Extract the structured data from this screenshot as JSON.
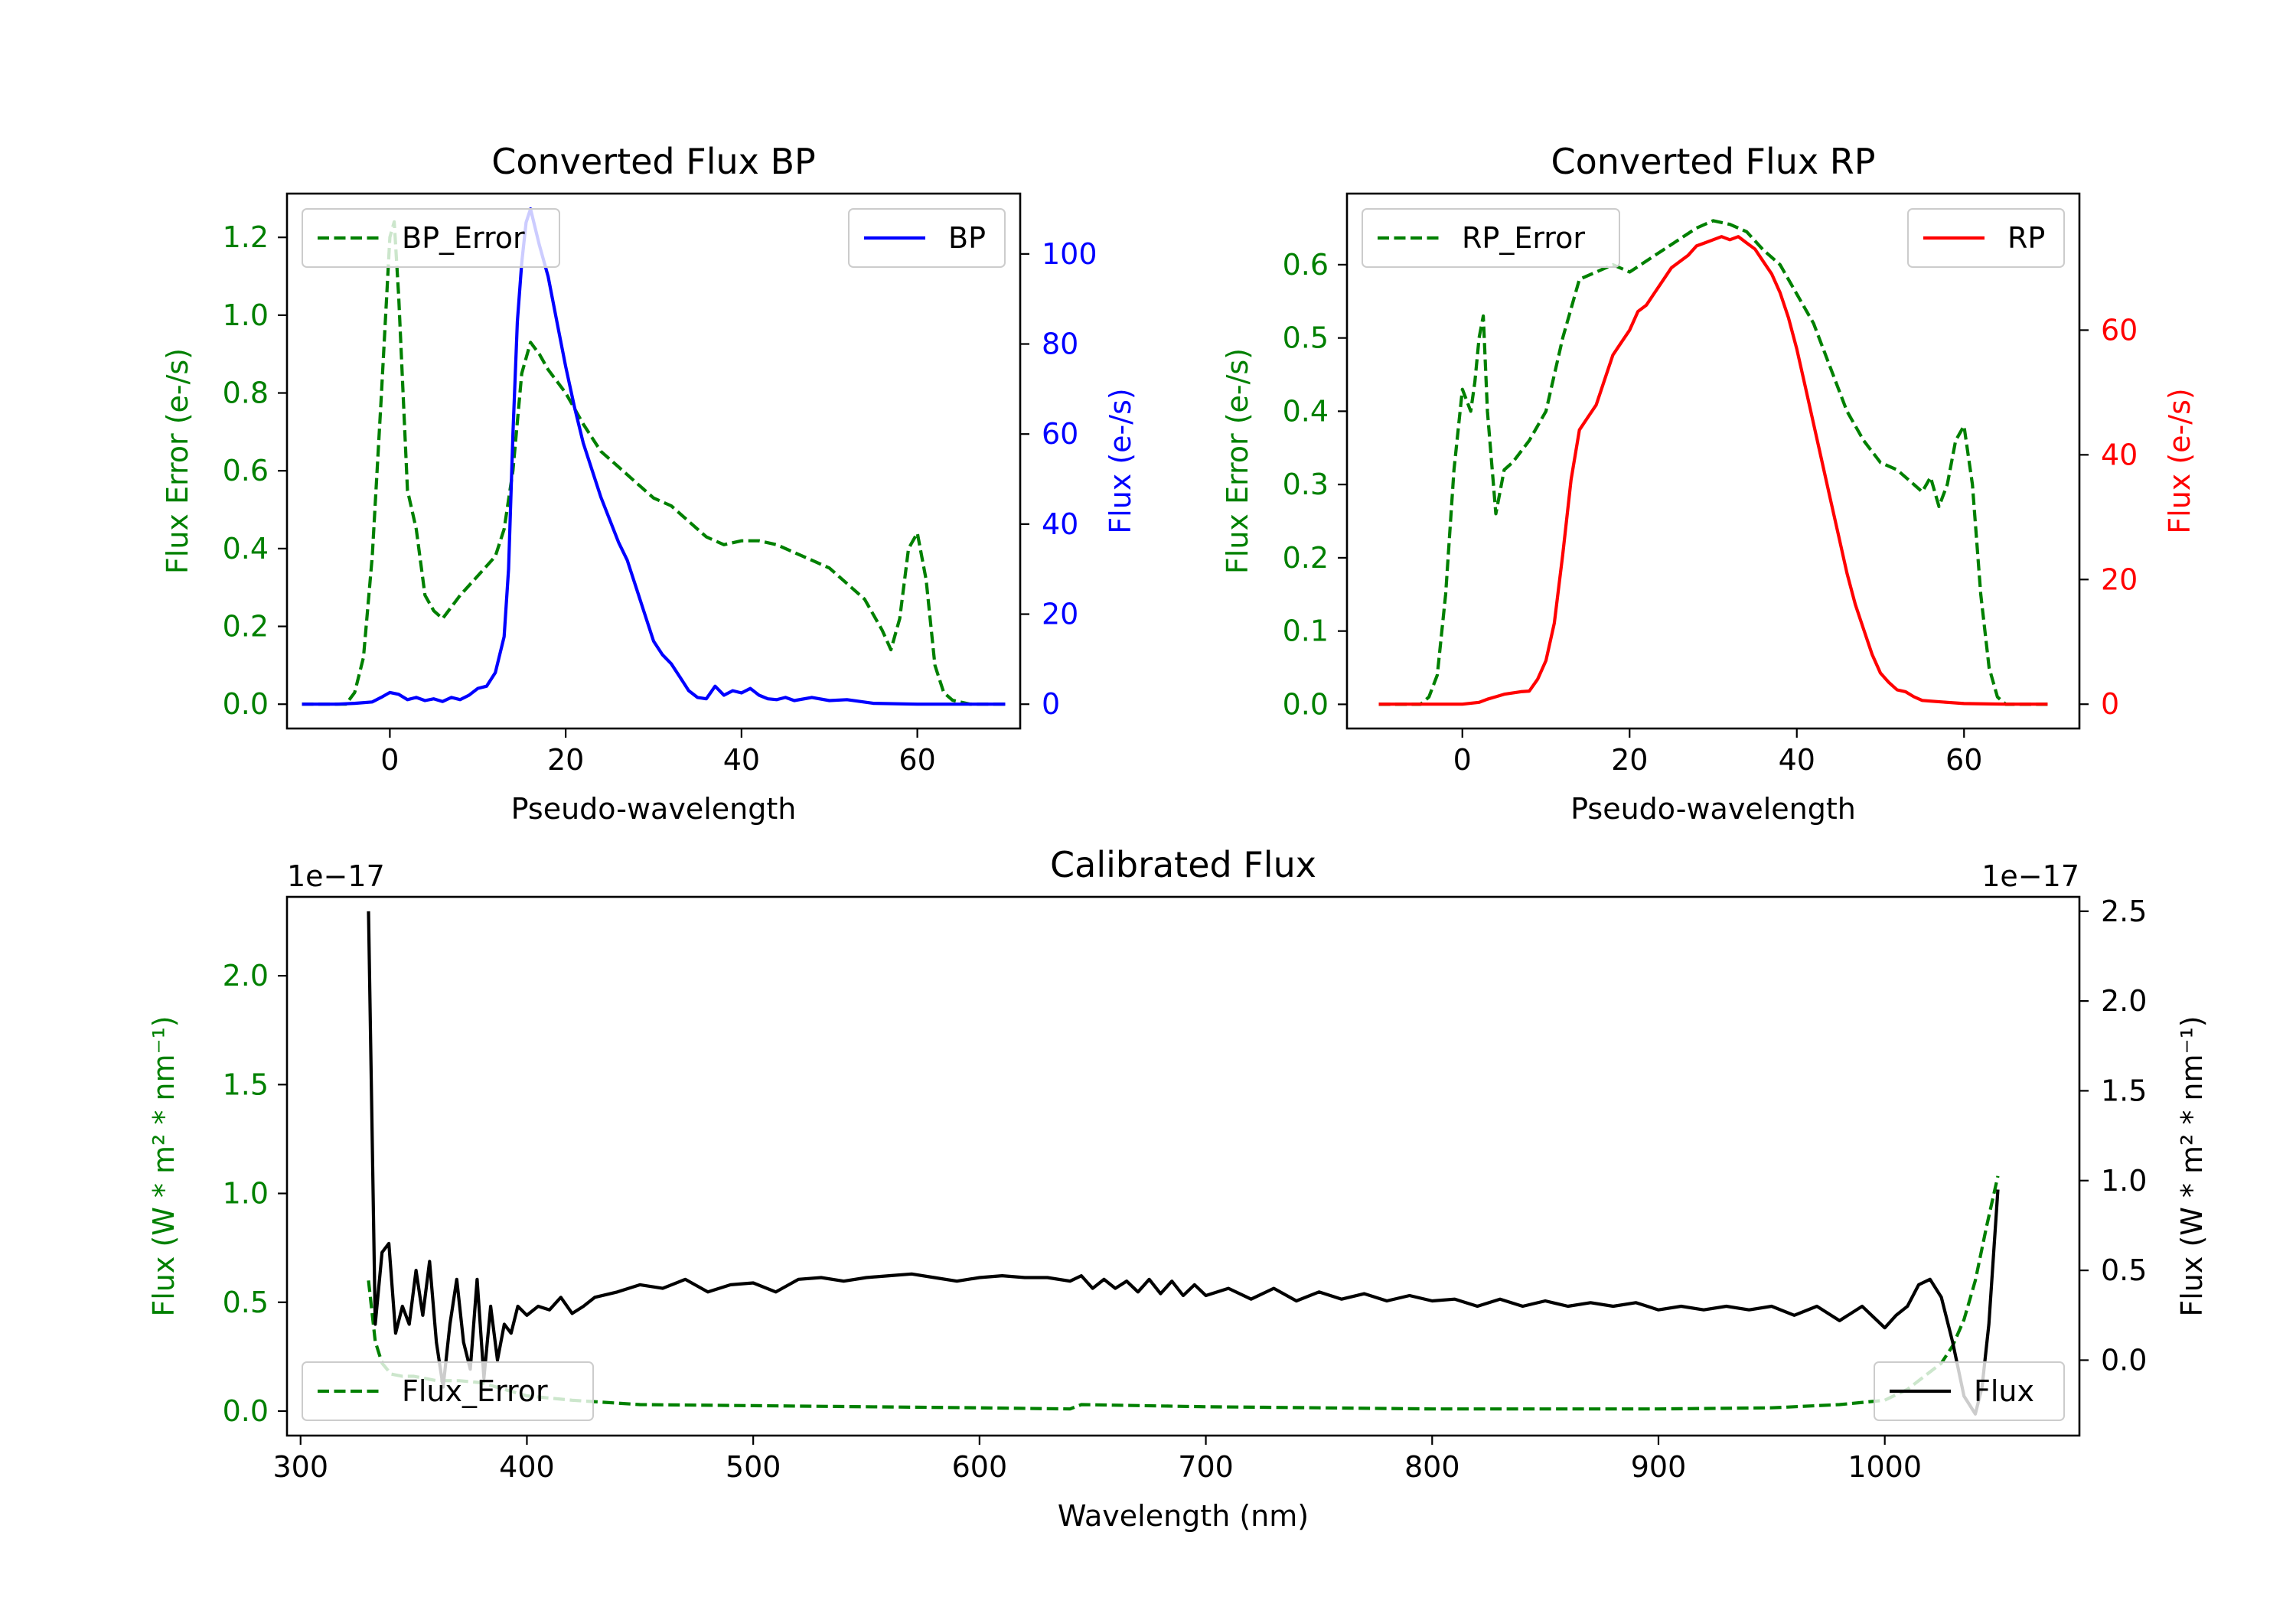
{
  "colors": {
    "bp": "#0000ff",
    "rp": "#ff0000",
    "error": "#008000",
    "flux": "#000000",
    "axis": "#000000",
    "background": "#ffffff"
  },
  "chart_data": [
    {
      "id": "bp",
      "type": "line",
      "title": "Converted Flux BP",
      "xlabel": "Pseudo-wavelength",
      "ylabel_left": "Flux Error (e-/s)",
      "ylabel_right": "Flux (e-/s)",
      "xlim": [
        -11.7,
        71.7
      ],
      "ylim_left": [
        -0.0625,
        1.3125
      ],
      "ylim_right": [
        -5.4,
        113.4
      ],
      "xticks": [
        0,
        20,
        40,
        60
      ],
      "yticks_left": [
        0.0,
        0.2,
        0.4,
        0.6,
        0.8,
        1.0,
        1.2
      ],
      "ytick_labels_left": [
        "0.0",
        "0.2",
        "0.4",
        "0.6",
        "0.8",
        "1.0",
        "1.2"
      ],
      "yticks_right": [
        0,
        20,
        40,
        60,
        80,
        100
      ],
      "ytick_labels_right": [
        "0",
        "20",
        "40",
        "60",
        "80",
        "100"
      ],
      "legend_left": "top-left",
      "legend_right": "top-right",
      "series": [
        {
          "name": "BP_Error",
          "axis": "left",
          "style": "dashed",
          "color": "#008000",
          "x": [
            -10,
            -5,
            -4,
            -3,
            -2,
            -1,
            0,
            0.5,
            1,
            2,
            3,
            4,
            5,
            6,
            8,
            10,
            12,
            13,
            14,
            15,
            16,
            17,
            18,
            20,
            22,
            24,
            26,
            28,
            30,
            32,
            34,
            36,
            38,
            40,
            42,
            44,
            46,
            48,
            50,
            52,
            54,
            56,
            57,
            58,
            59,
            60,
            61,
            62,
            63,
            64,
            66,
            70
          ],
          "values": [
            0.0,
            0.0,
            0.03,
            0.12,
            0.38,
            0.78,
            1.2,
            1.24,
            1.05,
            0.55,
            0.45,
            0.28,
            0.24,
            0.22,
            0.28,
            0.33,
            0.38,
            0.45,
            0.6,
            0.85,
            0.93,
            0.9,
            0.86,
            0.8,
            0.72,
            0.65,
            0.61,
            0.57,
            0.53,
            0.51,
            0.47,
            0.43,
            0.41,
            0.42,
            0.42,
            0.41,
            0.39,
            0.37,
            0.35,
            0.31,
            0.27,
            0.19,
            0.14,
            0.22,
            0.4,
            0.44,
            0.32,
            0.1,
            0.03,
            0.01,
            0.0,
            0.0
          ]
        },
        {
          "name": "BP",
          "axis": "right",
          "style": "solid",
          "color": "#0000ff",
          "x": [
            -10,
            -6,
            -4,
            -2,
            -1,
            0,
            1,
            2,
            3,
            4,
            5,
            6,
            7,
            8,
            9,
            10,
            11,
            12,
            13,
            13.5,
            14,
            14.5,
            15,
            15.5,
            16,
            17,
            18,
            19,
            20,
            21,
            22,
            23,
            24,
            25,
            26,
            27,
            28,
            29,
            30,
            31,
            32,
            33,
            34,
            35,
            36,
            37,
            38,
            39,
            40,
            41,
            42,
            43,
            44,
            45,
            46,
            48,
            50,
            52,
            55,
            60,
            65,
            70
          ],
          "values": [
            0,
            0,
            0.2,
            0.5,
            1.5,
            2.6,
            2.2,
            1.0,
            1.5,
            0.8,
            1.2,
            0.6,
            1.5,
            1.0,
            2.0,
            3.5,
            4.0,
            7.0,
            15,
            30,
            60,
            85,
            98,
            107,
            110,
            102,
            95,
            85,
            75,
            66,
            58,
            52,
            46,
            41,
            36,
            32,
            26,
            20,
            14,
            11,
            9,
            6,
            3,
            1.5,
            1.2,
            4,
            2,
            3,
            2.5,
            3.5,
            2.0,
            1.2,
            1.0,
            1.5,
            0.8,
            1.5,
            0.8,
            1.0,
            0.2,
            0,
            0,
            0
          ]
        }
      ]
    },
    {
      "id": "rp",
      "type": "line",
      "title": "Converted Flux RP",
      "xlabel": "Pseudo-wavelength",
      "ylabel_left": "Flux Error (e-/s)",
      "ylabel_right": "Flux (e-/s)",
      "xlim": [
        -13.8,
        73.8
      ],
      "ylim_left": [
        -0.033,
        0.697
      ],
      "ylim_right": [
        -3.9,
        81.9
      ],
      "xticks": [
        0,
        20,
        40,
        60
      ],
      "yticks_left": [
        0.0,
        0.1,
        0.2,
        0.3,
        0.4,
        0.5,
        0.6
      ],
      "ytick_labels_left": [
        "0.0",
        "0.1",
        "0.2",
        "0.3",
        "0.4",
        "0.5",
        "0.6"
      ],
      "yticks_right": [
        0,
        20,
        40,
        60
      ],
      "ytick_labels_right": [
        "0",
        "20",
        "40",
        "60"
      ],
      "legend_left": "top-left",
      "legend_right": "top-right",
      "series": [
        {
          "name": "RP_Error",
          "axis": "left",
          "style": "dashed",
          "color": "#008000",
          "x": [
            -10,
            -5,
            -4,
            -3,
            -2,
            -1,
            0,
            1,
            1.5,
            2,
            2.5,
            3,
            3.5,
            4,
            5,
            6,
            8,
            10,
            12,
            14,
            16,
            18,
            20,
            24,
            28,
            30,
            32,
            34,
            36,
            38,
            40,
            42,
            44,
            46,
            48,
            50,
            52,
            54,
            55,
            56,
            57,
            58,
            59,
            60,
            61,
            62,
            63,
            64,
            65,
            70
          ],
          "values": [
            0.0,
            0.0,
            0.01,
            0.04,
            0.15,
            0.32,
            0.43,
            0.4,
            0.44,
            0.5,
            0.53,
            0.4,
            0.33,
            0.26,
            0.32,
            0.33,
            0.36,
            0.4,
            0.5,
            0.58,
            0.59,
            0.6,
            0.59,
            0.62,
            0.65,
            0.66,
            0.655,
            0.645,
            0.62,
            0.6,
            0.56,
            0.52,
            0.46,
            0.4,
            0.36,
            0.33,
            0.32,
            0.3,
            0.29,
            0.31,
            0.27,
            0.3,
            0.36,
            0.38,
            0.3,
            0.15,
            0.05,
            0.01,
            0.0,
            0.0
          ]
        },
        {
          "name": "RP",
          "axis": "right",
          "style": "solid",
          "color": "#ff0000",
          "x": [
            -10,
            0,
            2,
            3,
            4,
            5,
            6,
            7,
            8,
            9,
            10,
            11,
            12,
            13,
            14,
            15,
            16,
            17,
            18,
            19,
            20,
            21,
            22,
            23,
            24,
            25,
            26,
            27,
            28,
            29,
            30,
            31,
            32,
            33,
            34,
            35,
            36,
            37,
            38,
            39,
            40,
            41,
            42,
            43,
            44,
            45,
            46,
            47,
            48,
            49,
            50,
            51,
            52,
            53,
            54,
            55,
            56,
            58,
            60,
            65,
            70
          ],
          "values": [
            0,
            0,
            0.3,
            0.8,
            1.2,
            1.6,
            1.8,
            2.0,
            2.1,
            4,
            7,
            13,
            24,
            36,
            44,
            46,
            48,
            52,
            56,
            58,
            60,
            63,
            64,
            66,
            68,
            70,
            71,
            72,
            73.5,
            74,
            74.5,
            75,
            74.5,
            75,
            74,
            73,
            71,
            69,
            66,
            62,
            57,
            51,
            45,
            39,
            33,
            27,
            21,
            16,
            12,
            8,
            5,
            3.5,
            2.3,
            2.0,
            1.2,
            0.6,
            0.5,
            0.3,
            0.1,
            0,
            0
          ]
        }
      ]
    },
    {
      "id": "cal",
      "type": "line",
      "title": "Calibrated Flux",
      "xlabel": "Wavelength (nm)",
      "ylabel_left": "Flux (W * m² * nm⁻¹)",
      "ylabel_right": "Flux (W * m² * nm⁻¹)",
      "offset_left": "1e−17",
      "offset_right": "1e−17",
      "xlim": [
        294,
        1086
      ],
      "ylim_left": [
        -0.1125,
        2.3625
      ],
      "ylim_right": [
        -0.42,
        2.58
      ],
      "xticks": [
        300,
        400,
        500,
        600,
        700,
        800,
        900,
        1000
      ],
      "yticks_left": [
        0.0,
        0.5,
        1.0,
        1.5,
        2.0
      ],
      "ytick_labels_left": [
        "0.0",
        "0.5",
        "1.0",
        "1.5",
        "2.0"
      ],
      "yticks_right": [
        0.0,
        0.5,
        1.0,
        1.5,
        2.0,
        2.5
      ],
      "ytick_labels_right": [
        "0.0",
        "0.5",
        "1.0",
        "1.5",
        "2.0",
        "2.5"
      ],
      "legend_left": "lower-left",
      "legend_right": "lower-right",
      "series": [
        {
          "name": "Flux_Error",
          "axis": "left",
          "style": "dashed",
          "color": "#008000",
          "x": [
            330,
            333,
            336,
            340,
            345,
            350,
            360,
            370,
            380,
            390,
            400,
            420,
            450,
            500,
            550,
            600,
            640,
            645,
            700,
            750,
            800,
            850,
            900,
            950,
            980,
            1000,
            1010,
            1020,
            1025,
            1030,
            1035,
            1040,
            1045,
            1050
          ],
          "values": [
            0.6,
            0.32,
            0.22,
            0.17,
            0.16,
            0.16,
            0.14,
            0.14,
            0.13,
            0.1,
            0.07,
            0.05,
            0.03,
            0.025,
            0.02,
            0.015,
            0.01,
            0.03,
            0.02,
            0.015,
            0.01,
            0.01,
            0.01,
            0.015,
            0.03,
            0.05,
            0.1,
            0.18,
            0.22,
            0.3,
            0.42,
            0.6,
            0.85,
            1.08
          ]
        },
        {
          "name": "Flux",
          "axis": "right",
          "style": "solid",
          "color": "#000000",
          "x": [
            330,
            333,
            336,
            339,
            342,
            345,
            348,
            351,
            354,
            357,
            360,
            363,
            366,
            369,
            372,
            375,
            378,
            381,
            384,
            387,
            390,
            393,
            396,
            400,
            405,
            410,
            415,
            420,
            425,
            430,
            440,
            450,
            460,
            470,
            480,
            490,
            500,
            510,
            520,
            530,
            540,
            550,
            560,
            570,
            580,
            590,
            600,
            610,
            620,
            630,
            640,
            645,
            650,
            655,
            660,
            665,
            670,
            675,
            680,
            685,
            690,
            695,
            700,
            710,
            720,
            730,
            740,
            750,
            760,
            770,
            780,
            790,
            800,
            810,
            820,
            830,
            840,
            850,
            860,
            870,
            880,
            890,
            900,
            910,
            920,
            930,
            940,
            950,
            960,
            970,
            980,
            990,
            1000,
            1005,
            1010,
            1015,
            1020,
            1025,
            1030,
            1035,
            1040,
            1043,
            1046,
            1050
          ],
          "values": [
            2.5,
            0.2,
            0.6,
            0.65,
            0.15,
            0.3,
            0.2,
            0.5,
            0.25,
            0.55,
            0.1,
            -0.15,
            0.2,
            0.45,
            0.1,
            -0.05,
            0.45,
            -0.1,
            0.3,
            0.0,
            0.2,
            0.15,
            0.3,
            0.25,
            0.3,
            0.28,
            0.35,
            0.26,
            0.3,
            0.35,
            0.38,
            0.42,
            0.4,
            0.45,
            0.38,
            0.42,
            0.43,
            0.38,
            0.45,
            0.46,
            0.44,
            0.46,
            0.47,
            0.48,
            0.46,
            0.44,
            0.46,
            0.47,
            0.46,
            0.46,
            0.44,
            0.47,
            0.4,
            0.45,
            0.4,
            0.44,
            0.38,
            0.45,
            0.37,
            0.44,
            0.36,
            0.42,
            0.36,
            0.4,
            0.34,
            0.4,
            0.33,
            0.38,
            0.34,
            0.37,
            0.33,
            0.36,
            0.33,
            0.34,
            0.3,
            0.34,
            0.3,
            0.33,
            0.3,
            0.32,
            0.3,
            0.32,
            0.28,
            0.3,
            0.28,
            0.3,
            0.28,
            0.3,
            0.25,
            0.3,
            0.22,
            0.3,
            0.18,
            0.25,
            0.3,
            0.42,
            0.45,
            0.35,
            0.1,
            -0.2,
            -0.3,
            -0.15,
            0.2,
            0.95
          ]
        }
      ]
    }
  ]
}
